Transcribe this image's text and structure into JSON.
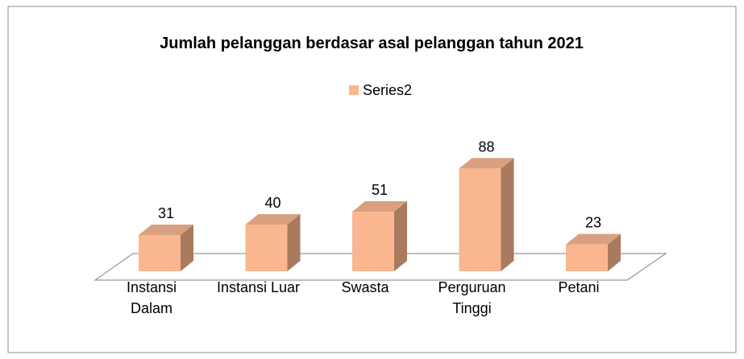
{
  "chart_data": {
    "type": "bar",
    "title": "Jumlah pelanggan berdasar asal pelanggan tahun 2021",
    "categories": [
      "Instansi Dalam",
      "Instansi Luar",
      "Swasta",
      "Perguruan Tinggi",
      "Petani"
    ],
    "series": [
      {
        "name": "Series2",
        "color": "#fab68e",
        "values": [
          31,
          40,
          51,
          88,
          23
        ]
      }
    ]
  }
}
